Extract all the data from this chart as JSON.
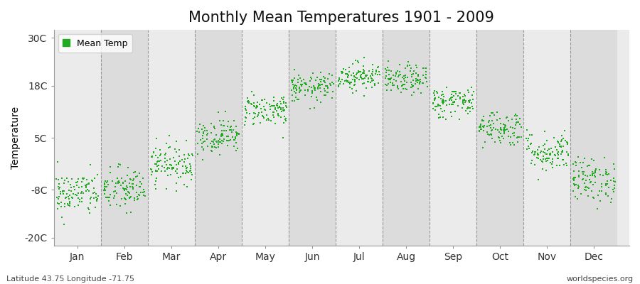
{
  "title": "Monthly Mean Temperatures 1901 - 2009",
  "ylabel": "Temperature",
  "xlabel": "",
  "months": [
    "Jan",
    "Feb",
    "Mar",
    "Apr",
    "May",
    "Jun",
    "Jul",
    "Aug",
    "Sep",
    "Oct",
    "Nov",
    "Dec"
  ],
  "month_positions": [
    1,
    2,
    3,
    4,
    5,
    6,
    7,
    8,
    9,
    10,
    11,
    12
  ],
  "yticks": [
    -20,
    -8,
    5,
    18,
    30
  ],
  "ytick_labels": [
    "-20C",
    "-8C",
    "5C",
    "18C",
    "30C"
  ],
  "ylim": [
    -22,
    32
  ],
  "xlim": [
    0.5,
    12.75
  ],
  "n_years": 109,
  "mean_temps": [
    -9.0,
    -8.0,
    -1.5,
    5.5,
    12.0,
    17.5,
    20.5,
    19.5,
    14.0,
    7.5,
    1.5,
    -5.5
  ],
  "std_temps": [
    2.8,
    2.8,
    2.5,
    2.2,
    2.0,
    1.8,
    1.8,
    1.8,
    2.0,
    2.2,
    2.5,
    2.8
  ],
  "marker_color": "#22AA22",
  "marker_size": 4,
  "fig_background_color": "#FFFFFF",
  "plot_background_color": "#EBEBEB",
  "alt_background_color": "#DCDCDC",
  "title_fontsize": 15,
  "axis_fontsize": 10,
  "tick_fontsize": 10,
  "legend_label": "Mean Temp",
  "footnote_left": "Latitude 43.75 Longitude -71.75",
  "footnote_right": "worldspecies.org",
  "dashed_line_color": "#777777",
  "dashed_line_positions": [
    1.5,
    2.5,
    3.5,
    4.5,
    5.5,
    6.5,
    7.5,
    8.5,
    9.5,
    10.5,
    11.5
  ]
}
